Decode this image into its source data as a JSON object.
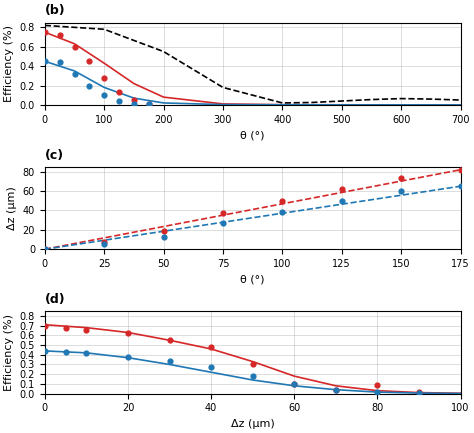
{
  "chart_data": [
    {
      "type": "line",
      "title": "(b)",
      "x_label": "θ (°)",
      "y_label": "Efficiency (%)",
      "xlim": [
        0,
        700
      ],
      "ylim": [
        0,
        0.85
      ],
      "xticks": [
        0,
        100,
        200,
        300,
        400,
        500,
        600,
        700
      ],
      "yticks": [
        0.0,
        0.2,
        0.4,
        0.6,
        0.8
      ],
      "grid": true,
      "series": [
        {
          "type": "line",
          "color": "#d62728",
          "line_style": "solid",
          "x": [
            0,
            50,
            100,
            150,
            200,
            300,
            400,
            500,
            600,
            700
          ],
          "values": [
            0.75,
            0.63,
            0.43,
            0.22,
            0.08,
            0.01,
            0.002,
            0.001,
            0.0,
            0.0
          ]
        },
        {
          "type": "line",
          "color": "#1f77b4",
          "line_style": "solid",
          "x": [
            0,
            50,
            100,
            150,
            200,
            300,
            400,
            500,
            600,
            700
          ],
          "values": [
            0.45,
            0.35,
            0.18,
            0.07,
            0.02,
            0.003,
            0.001,
            0.0,
            0.0,
            0.0
          ]
        },
        {
          "type": "line",
          "color": "#000000",
          "line_style": "dashed",
          "x": [
            0,
            100,
            200,
            300,
            400,
            450,
            500,
            550,
            600,
            650,
            700
          ],
          "values": [
            0.82,
            0.78,
            0.55,
            0.18,
            0.02,
            0.025,
            0.04,
            0.055,
            0.065,
            0.06,
            0.05
          ]
        },
        {
          "type": "scatter",
          "color": "#d62728",
          "marker": "o",
          "x": [
            0,
            25,
            50,
            75,
            100,
            125,
            150,
            175
          ],
          "values": [
            0.75,
            0.72,
            0.6,
            0.45,
            0.28,
            0.13,
            0.05,
            0.01
          ]
        },
        {
          "type": "scatter",
          "color": "#1f77b4",
          "marker": "o",
          "x": [
            0,
            25,
            50,
            75,
            100,
            125,
            150,
            175
          ],
          "values": [
            0.45,
            0.44,
            0.32,
            0.2,
            0.1,
            0.04,
            0.01,
            0.005
          ]
        }
      ]
    },
    {
      "type": "line",
      "title": "(c)",
      "x_label": "θ (°)",
      "y_label": "Δz (μm)",
      "xlim": [
        0,
        175
      ],
      "ylim": [
        0,
        85
      ],
      "xticks": [
        0,
        25,
        50,
        75,
        100,
        125,
        150,
        175
      ],
      "yticks": [
        0,
        20,
        40,
        60,
        80
      ],
      "grid": true,
      "series": [
        {
          "type": "line",
          "color": "#d62728",
          "line_style": "dashed",
          "x": [
            0,
            175
          ],
          "values": [
            0,
            82
          ]
        },
        {
          "type": "line",
          "color": "#1f77b4",
          "line_style": "dashed",
          "x": [
            0,
            175
          ],
          "values": [
            0,
            65
          ]
        },
        {
          "type": "scatter",
          "color": "#d62728",
          "marker": "o",
          "x": [
            0,
            25,
            50,
            75,
            100,
            125,
            150,
            175
          ],
          "values": [
            0,
            7,
            19,
            37,
            50,
            62,
            73,
            82
          ]
        },
        {
          "type": "scatter",
          "color": "#1f77b4",
          "marker": "o",
          "x": [
            0,
            25,
            50,
            75,
            100,
            125,
            150,
            175
          ],
          "values": [
            0,
            5,
            13,
            27,
            38,
            50,
            60,
            65
          ]
        }
      ]
    },
    {
      "type": "line",
      "title": "(d)",
      "x_label": "Δz (μm)",
      "y_label": "Efficiency (%)",
      "xlim": [
        0,
        100
      ],
      "ylim": [
        0,
        0.85
      ],
      "xticks": [
        0,
        20,
        40,
        60,
        80,
        100
      ],
      "yticks": [
        0.0,
        0.1,
        0.2,
        0.3,
        0.4,
        0.5,
        0.6,
        0.7,
        0.8
      ],
      "grid": true,
      "series": [
        {
          "type": "line",
          "color": "#d62728",
          "line_style": "solid",
          "x": [
            0,
            10,
            20,
            30,
            40,
            50,
            60,
            70,
            80,
            90,
            100
          ],
          "values": [
            0.71,
            0.68,
            0.63,
            0.55,
            0.46,
            0.33,
            0.18,
            0.08,
            0.03,
            0.01,
            0.003
          ]
        },
        {
          "type": "line",
          "color": "#1f77b4",
          "line_style": "solid",
          "x": [
            0,
            10,
            20,
            30,
            40,
            50,
            60,
            70,
            80,
            90,
            100
          ],
          "values": [
            0.44,
            0.42,
            0.37,
            0.3,
            0.22,
            0.14,
            0.08,
            0.04,
            0.015,
            0.005,
            0.001
          ]
        },
        {
          "type": "scatter",
          "color": "#d62728",
          "marker": "o",
          "x": [
            0,
            5,
            10,
            20,
            30,
            40,
            50,
            60,
            70,
            80,
            90
          ],
          "values": [
            0.7,
            0.68,
            0.66,
            0.62,
            0.55,
            0.48,
            0.3,
            0.095,
            0.035,
            0.09,
            0.02
          ]
        },
        {
          "type": "scatter",
          "color": "#1f77b4",
          "marker": "o",
          "x": [
            0,
            5,
            10,
            20,
            30,
            40,
            50,
            60,
            70,
            80,
            90
          ],
          "values": [
            0.44,
            0.43,
            0.42,
            0.38,
            0.34,
            0.27,
            0.18,
            0.095,
            0.04,
            0.015,
            0.005
          ]
        }
      ]
    }
  ]
}
